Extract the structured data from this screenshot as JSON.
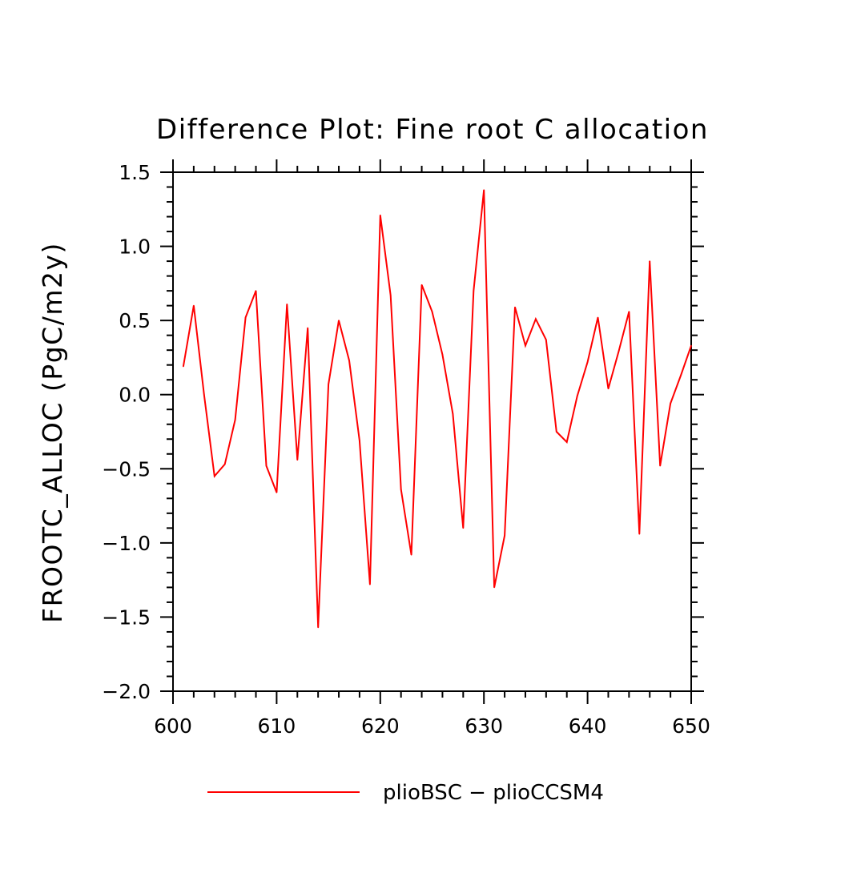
{
  "chart_data": {
    "type": "line",
    "title": "Difference Plot: Fine root C allocation",
    "ylabel": "FROOTC_ALLOC   (PgC/m2y)",
    "xlabel": "",
    "xlim": [
      600,
      650
    ],
    "ylim": [
      -2.0,
      1.5
    ],
    "xticks": [
      600,
      610,
      620,
      630,
      640,
      650
    ],
    "xtick_labels": [
      "600",
      "610",
      "620",
      "630",
      "640",
      "650"
    ],
    "yticks": [
      -2.0,
      -1.5,
      -1.0,
      -0.5,
      0.0,
      0.5,
      1.0,
      1.5
    ],
    "ytick_labels": [
      "−2.0",
      "−1.5",
      "−1.0",
      "−0.5",
      "0.0",
      "0.5",
      "1.0",
      "1.5"
    ],
    "grid": false,
    "legend_position": "bottom",
    "series": [
      {
        "name": "plioBSC − plioCCSM4",
        "color": "#ff0000",
        "x": [
          601,
          602,
          603,
          604,
          605,
          606,
          607,
          608,
          609,
          610,
          611,
          612,
          613,
          614,
          615,
          616,
          617,
          618,
          619,
          620,
          621,
          622,
          623,
          624,
          625,
          626,
          627,
          628,
          629,
          630,
          631,
          632,
          633,
          634,
          635,
          636,
          637,
          638,
          639,
          640,
          641,
          642,
          643,
          644,
          645,
          646,
          647,
          648,
          649,
          650
        ],
        "y": [
          0.19,
          0.6,
          0.0,
          -0.55,
          -0.47,
          -0.17,
          0.52,
          0.7,
          -0.48,
          -0.66,
          0.61,
          -0.44,
          0.45,
          -1.57,
          0.07,
          0.5,
          0.23,
          -0.31,
          -1.28,
          1.21,
          0.67,
          -0.64,
          -1.08,
          0.74,
          0.56,
          0.27,
          -0.13,
          -0.9,
          0.7,
          1.38,
          -1.3,
          -0.95,
          0.59,
          0.33,
          0.51,
          0.37,
          -0.25,
          -0.32,
          -0.01,
          0.22,
          0.52,
          0.04,
          0.29,
          0.56,
          -0.94,
          0.9,
          -0.48,
          -0.06,
          0.13,
          0.33
        ]
      }
    ]
  }
}
